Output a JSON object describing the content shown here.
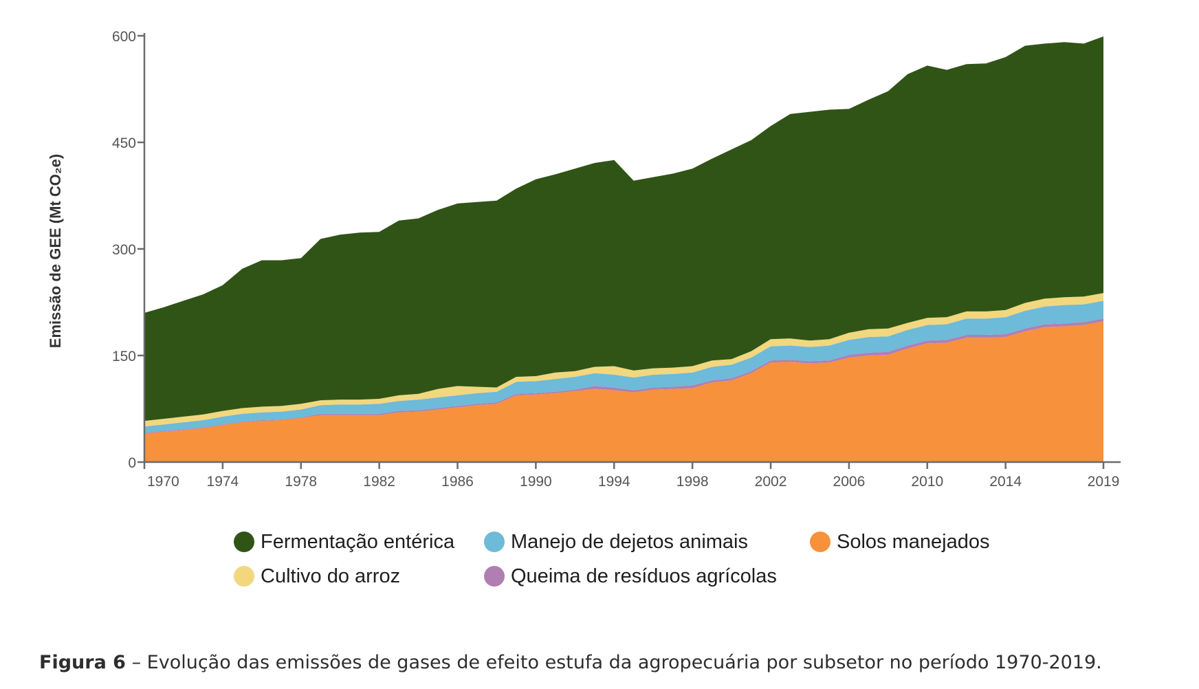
{
  "chart_data": {
    "type": "area",
    "stacked": true,
    "title": "",
    "xlabel": "",
    "ylabel": "Emissão de GEE (Mt CO₂e)",
    "ylim": [
      0,
      600
    ],
    "yticks": [
      0,
      150,
      300,
      450,
      600
    ],
    "xlim": [
      1970,
      2019
    ],
    "xticks": [
      1970,
      1974,
      1978,
      1982,
      1986,
      1990,
      1994,
      1998,
      2002,
      2006,
      2010,
      2014,
      2019
    ],
    "grid": false,
    "legend_position": "bottom",
    "x": [
      1970,
      1971,
      1972,
      1973,
      1974,
      1975,
      1976,
      1977,
      1978,
      1979,
      1980,
      1981,
      1982,
      1983,
      1984,
      1985,
      1986,
      1987,
      1988,
      1989,
      1990,
      1991,
      1992,
      1993,
      1994,
      1995,
      1996,
      1997,
      1998,
      1999,
      2000,
      2001,
      2002,
      2003,
      2004,
      2005,
      2006,
      2007,
      2008,
      2009,
      2010,
      2011,
      2012,
      2013,
      2014,
      2015,
      2016,
      2017,
      2018,
      2019
    ],
    "series": [
      {
        "name": "Solos manejados",
        "color": "#f7913c",
        "values": [
          40,
          43,
          45,
          48,
          52,
          56,
          58,
          59,
          62,
          66,
          66,
          66,
          66,
          70,
          71,
          74,
          77,
          80,
          82,
          94,
          95,
          97,
          100,
          103,
          101,
          98,
          102,
          103,
          104,
          112,
          115,
          125,
          140,
          141,
          139,
          140,
          147,
          150,
          151,
          160,
          167,
          168,
          175,
          175,
          176,
          184,
          190,
          191,
          193,
          198
        ]
      },
      {
        "name": "Queima de resíduos agrícolas",
        "color": "#b07fb2",
        "values": [
          1,
          1,
          1,
          1,
          1,
          1,
          1,
          1,
          1,
          2,
          2,
          2,
          2,
          2,
          2,
          2,
          2,
          2,
          2,
          2,
          2,
          2,
          2,
          4,
          4,
          3,
          3,
          3,
          4,
          3,
          3,
          3,
          3,
          3,
          3,
          3,
          4,
          4,
          4,
          4,
          4,
          4,
          4,
          4,
          4,
          4,
          4,
          4,
          4,
          4
        ]
      },
      {
        "name": "Manejo de dejetos animais",
        "color": "#6dbad9",
        "values": [
          9,
          9,
          10,
          10,
          11,
          11,
          11,
          11,
          11,
          12,
          13,
          13,
          14,
          14,
          15,
          15,
          15,
          15,
          15,
          17,
          17,
          18,
          18,
          18,
          18,
          18,
          18,
          18,
          18,
          19,
          19,
          19,
          20,
          20,
          20,
          21,
          21,
          22,
          22,
          22,
          22,
          22,
          23,
          23,
          24,
          25,
          25,
          26,
          25,
          25
        ]
      },
      {
        "name": "Cultivo do arroz",
        "color": "#f2d77e",
        "values": [
          8,
          8,
          8,
          8,
          8,
          8,
          8,
          8,
          8,
          7,
          7,
          7,
          7,
          8,
          8,
          12,
          13,
          9,
          6,
          7,
          7,
          9,
          8,
          9,
          12,
          10,
          9,
          9,
          9,
          9,
          8,
          9,
          10,
          10,
          9,
          9,
          10,
          11,
          11,
          10,
          10,
          10,
          10,
          10,
          10,
          11,
          11,
          11,
          11,
          11
        ]
      },
      {
        "name": "Fermentação entérica",
        "color": "#305416",
        "values": [
          152,
          157,
          163,
          169,
          177,
          196,
          206,
          205,
          205,
          227,
          232,
          235,
          235,
          246,
          247,
          252,
          257,
          260,
          263,
          265,
          277,
          279,
          285,
          287,
          290,
          267,
          269,
          273,
          278,
          284,
          295,
          297,
          300,
          316,
          322,
          323,
          315,
          323,
          334,
          350,
          355,
          348,
          348,
          349,
          356,
          362,
          359,
          359,
          356,
          361
        ]
      }
    ],
    "legend_order": [
      "Fermentação entérica",
      "Manejo de dejetos animais",
      "Solos manejados",
      "Cultivo do arroz",
      "Queima de resíduos agrícolas"
    ]
  },
  "caption": {
    "label": "Figura 6",
    "text": " – Evolução das emissões de gases de efeito estufa da agropecuária por subsetor no período 1970-2019."
  }
}
